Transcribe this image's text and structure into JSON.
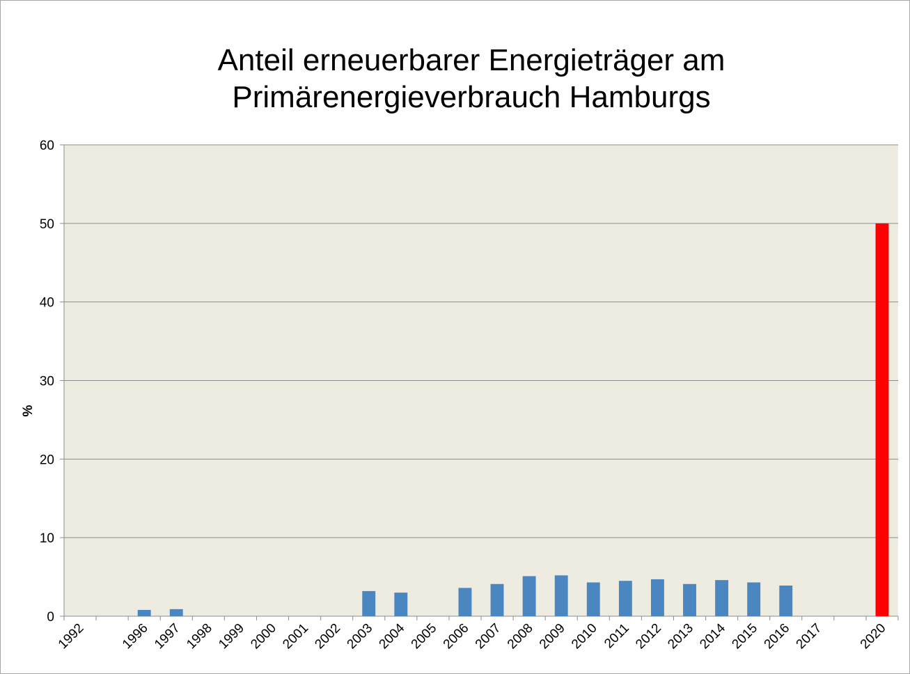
{
  "chart_data": {
    "type": "bar",
    "title": "Anteil erneuerbarer Energieträger am Primärenergieverbrauch Hamburgs",
    "ylabel": "%",
    "categories": [
      "1992",
      null,
      "1996",
      "1997",
      "1998",
      "1999",
      "2000",
      "2001",
      "2002",
      "2003",
      "2004",
      "2005",
      "2006",
      "2007",
      "2008",
      "2009",
      "2010",
      "2011",
      "2012",
      "2013",
      "2014",
      "2015",
      "2016",
      "2017",
      null,
      "2020"
    ],
    "values": [
      null,
      null,
      0.8,
      0.9,
      null,
      null,
      null,
      null,
      null,
      3.2,
      3.0,
      null,
      3.6,
      4.1,
      5.1,
      5.2,
      4.3,
      4.5,
      4.7,
      4.1,
      4.6,
      4.3,
      3.9,
      null,
      null,
      50
    ],
    "colors": [
      "#4a86c0",
      "#4a86c0",
      "#4a86c0",
      "#4a86c0",
      "#4a86c0",
      "#4a86c0",
      "#4a86c0",
      "#4a86c0",
      "#4a86c0",
      "#4a86c0",
      "#4a86c0",
      "#4a86c0",
      "#4a86c0",
      "#4a86c0",
      "#4a86c0",
      "#4a86c0",
      "#4a86c0",
      "#4a86c0",
      "#4a86c0",
      "#4a86c0",
      "#4a86c0",
      "#4a86c0",
      "#4a86c0",
      "#4a86c0",
      "#4a86c0",
      "#ff0000"
    ],
    "ylim": [
      0,
      60
    ],
    "yticks": [
      0,
      10,
      20,
      30,
      40,
      50,
      60
    ],
    "grid": true
  }
}
